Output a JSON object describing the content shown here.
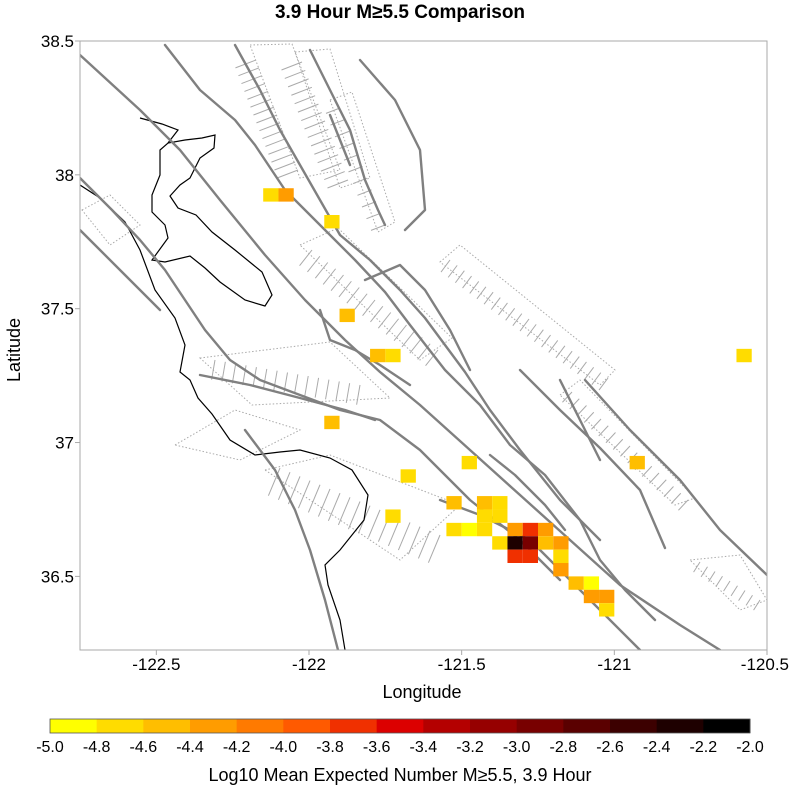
{
  "chart_data": {
    "type": "heatmap",
    "title": "3.9 Hour M≥5.5 Comparison",
    "xlabel": "Longitude",
    "ylabel": "Latitude",
    "xlim": [
      -122.75,
      -120.5
    ],
    "ylim": [
      36.225,
      38.5
    ],
    "x_ticks": [
      -122.5,
      -122,
      -121.5,
      -121,
      -120.5
    ],
    "x_tick_labels": [
      "-122.5",
      "-122",
      "-121.5",
      "-121",
      "-120.5"
    ],
    "y_ticks": [
      38.5,
      38,
      37.5,
      37,
      36.5
    ],
    "y_tick_labels": [
      "38.5",
      "38",
      "37.5",
      "37",
      "36.5"
    ],
    "grid": false,
    "cell_size_deg": 0.05,
    "cells": [
      {
        "lon": -122.125,
        "lat": 37.925,
        "value": -4.7
      },
      {
        "lon": -122.075,
        "lat": 37.925,
        "value": -4.3
      },
      {
        "lon": -121.925,
        "lat": 37.825,
        "value": -4.8
      },
      {
        "lon": -121.875,
        "lat": 37.475,
        "value": -4.6
      },
      {
        "lon": -121.775,
        "lat": 37.325,
        "value": -4.6
      },
      {
        "lon": -121.725,
        "lat": 37.325,
        "value": -4.8
      },
      {
        "lon": -121.925,
        "lat": 37.075,
        "value": -4.6
      },
      {
        "lon": -121.675,
        "lat": 36.875,
        "value": -4.7
      },
      {
        "lon": -121.725,
        "lat": 36.725,
        "value": -4.8
      },
      {
        "lon": -121.475,
        "lat": 36.925,
        "value": -4.8
      },
      {
        "lon": -121.525,
        "lat": 36.775,
        "value": -4.4
      },
      {
        "lon": -121.525,
        "lat": 36.675,
        "value": -4.8
      },
      {
        "lon": -121.475,
        "lat": 36.675,
        "value": -4.9
      },
      {
        "lon": -121.425,
        "lat": 36.675,
        "value": -4.8
      },
      {
        "lon": -121.425,
        "lat": 36.775,
        "value": -4.4
      },
      {
        "lon": -121.375,
        "lat": 36.775,
        "value": -4.7
      },
      {
        "lon": -121.425,
        "lat": 36.725,
        "value": -4.7
      },
      {
        "lon": -121.375,
        "lat": 36.725,
        "value": -4.8
      },
      {
        "lon": -121.375,
        "lat": 36.625,
        "value": -4.8
      },
      {
        "lon": -121.325,
        "lat": 36.675,
        "value": -4.3
      },
      {
        "lon": -121.275,
        "lat": 36.675,
        "value": -3.6
      },
      {
        "lon": -121.325,
        "lat": 36.625,
        "value": -2.3
      },
      {
        "lon": -121.275,
        "lat": 36.625,
        "value": -2.9
      },
      {
        "lon": -121.325,
        "lat": 36.575,
        "value": -3.6
      },
      {
        "lon": -121.275,
        "lat": 36.575,
        "value": -3.6
      },
      {
        "lon": -121.225,
        "lat": 36.675,
        "value": -4.3
      },
      {
        "lon": -121.225,
        "lat": 36.625,
        "value": -4.5
      },
      {
        "lon": -121.175,
        "lat": 36.625,
        "value": -4.3
      },
      {
        "lon": -121.175,
        "lat": 36.575,
        "value": -4.7
      },
      {
        "lon": -121.175,
        "lat": 36.525,
        "value": -4.3
      },
      {
        "lon": -121.125,
        "lat": 36.475,
        "value": -4.4
      },
      {
        "lon": -121.075,
        "lat": 36.475,
        "value": -4.9
      },
      {
        "lon": -121.075,
        "lat": 36.425,
        "value": -4.3
      },
      {
        "lon": -121.025,
        "lat": 36.425,
        "value": -4.2
      },
      {
        "lon": -121.025,
        "lat": 36.375,
        "value": -4.8
      },
      {
        "lon": -120.925,
        "lat": 36.925,
        "value": -4.6
      },
      {
        "lon": -120.575,
        "lat": 37.325,
        "value": -4.8
      }
    ],
    "colorbar": {
      "label": "Log10 Mean Expected Number M≥5.5, 3.9 Hour",
      "range": [
        -5.0,
        -2.0
      ],
      "ticks": [
        -5.0,
        -4.8,
        -4.6,
        -4.4,
        -4.2,
        -4.0,
        -3.8,
        -3.6,
        -3.4,
        -3.2,
        -3.0,
        -2.8,
        -2.6,
        -2.4,
        -2.2,
        -2.0
      ],
      "tick_labels": [
        "-5.0",
        "-4.8",
        "-4.6",
        "-4.4",
        "-4.2",
        "-4.0",
        "-3.8",
        "-3.6",
        "-3.4",
        "-3.2",
        "-3.0",
        "-2.8",
        "-2.6",
        "-2.4",
        "-2.2",
        "-2.0"
      ],
      "colors": [
        "#ffff00",
        "#ffdc00",
        "#ffbe00",
        "#ff9c00",
        "#ff7a00",
        "#ff5a00",
        "#f03000",
        "#dc0000",
        "#b40000",
        "#960000",
        "#780000",
        "#5a0000",
        "#3c0000",
        "#1e0000",
        "#000000"
      ]
    },
    "colors": {
      "fault": "#808080",
      "fault_zone": "#aaaaaa",
      "coastline": "#000000",
      "frame": "#aaaaaa"
    }
  }
}
